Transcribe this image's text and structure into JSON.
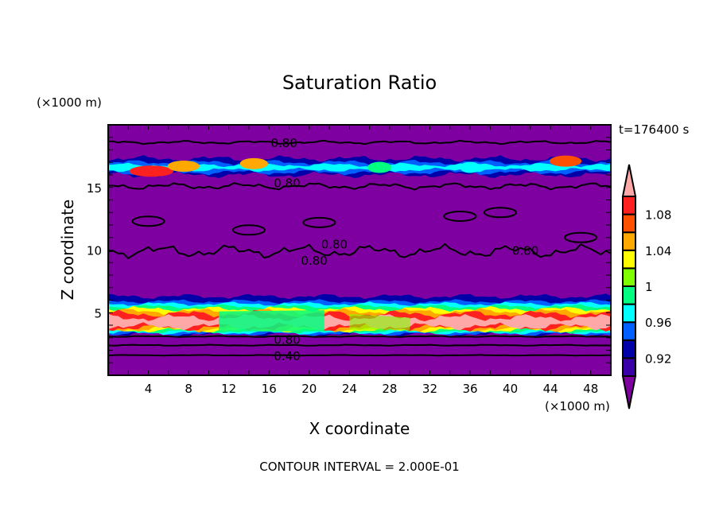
{
  "chart_data": {
    "type": "heatmap",
    "title": "Saturation Ratio",
    "xlabel": "X coordinate",
    "ylabel": "Z coordinate",
    "x_unit": "(×1000 m)",
    "y_unit": "(×1000 m)",
    "xlim": [
      0,
      50
    ],
    "ylim": [
      0,
      20
    ],
    "xticks": [
      4,
      8,
      12,
      16,
      20,
      24,
      28,
      32,
      36,
      40,
      44,
      48
    ],
    "yticks": [
      5,
      10,
      15
    ],
    "time_label": "t=176400 s",
    "footer": "CONTOUR INTERVAL = 2.000E-01",
    "colorbar": {
      "levels": [
        0.9,
        0.92,
        0.94,
        0.96,
        0.98,
        1.0,
        1.02,
        1.04,
        1.06,
        1.08,
        1.1
      ],
      "tick_labels": [
        {
          "value": 0.92,
          "label": "0.92"
        },
        {
          "value": 0.96,
          "label": "0.96"
        },
        {
          "value": 1.0,
          "label": "1"
        },
        {
          "value": 1.04,
          "label": "1.04"
        },
        {
          "value": 1.08,
          "label": "1.08"
        }
      ],
      "under_color": "#7f00a0",
      "over_color": "#ffa8a8",
      "colors": [
        "#3a00a8",
        "#0000a8",
        "#0060ff",
        "#00ffff",
        "#00ff80",
        "#80ff00",
        "#ffff00",
        "#ffa800",
        "#ff5000",
        "#ff2020"
      ]
    },
    "contour_labels": [
      {
        "label": "0.80",
        "x": 17.5,
        "z": 18.6
      },
      {
        "label": "0.80",
        "x": 17.8,
        "z": 15.4
      },
      {
        "label": "0.80",
        "x": 22.5,
        "z": 10.5
      },
      {
        "label": "0.80",
        "x": 20.5,
        "z": 9.2
      },
      {
        "label": "0.80",
        "x": 41.5,
        "z": 10.0
      },
      {
        "label": "0.80",
        "x": 17.8,
        "z": 2.9
      },
      {
        "label": "0.40",
        "x": 17.8,
        "z": 1.6
      }
    ]
  }
}
